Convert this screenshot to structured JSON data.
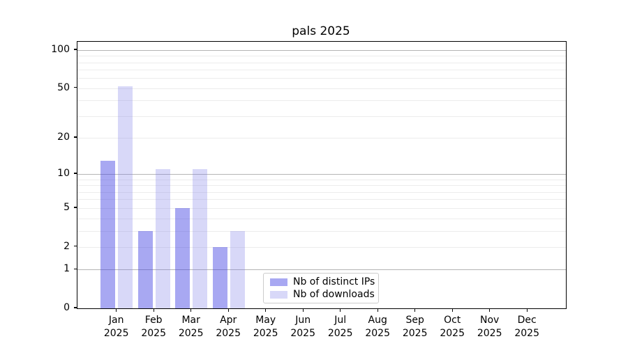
{
  "title": "pals 2025",
  "chart_data": {
    "type": "bar",
    "title": "pals 2025",
    "categories": [
      "Jan",
      "Feb",
      "Mar",
      "Apr",
      "May",
      "Jun",
      "Jul",
      "Aug",
      "Sep",
      "Oct",
      "Nov",
      "Dec"
    ],
    "x_year_label": "2025",
    "series": [
      {
        "name": "Nb of distinct IPs",
        "color": "rgba(62,62,226,0.45)",
        "solid_color": "#a8a8f2",
        "values": [
          13,
          3,
          5,
          2,
          0,
          0,
          0,
          0,
          0,
          0,
          0,
          0
        ]
      },
      {
        "name": "Nb of downloads",
        "color": "rgba(125,125,232,0.30)",
        "solid_color": "#d9d9f8",
        "values": [
          52,
          11,
          11,
          3,
          0,
          0,
          0,
          0,
          0,
          0,
          0,
          0
        ]
      }
    ],
    "y_ticks": [
      100,
      50,
      20,
      10,
      5,
      2,
      1,
      0
    ],
    "y_scale": "log1p",
    "y_axis_top_value": 116,
    "ylim": [
      0,
      116
    ],
    "major_gridlines": [
      1,
      10,
      100
    ],
    "minor_gridlines": [
      2,
      3,
      4,
      5,
      6,
      7,
      8,
      9,
      20,
      30,
      40,
      50,
      60,
      70,
      80,
      90
    ],
    "grid": true,
    "legend_position": "inside bottom-center",
    "legend_items": [
      "Nb of distinct IPs",
      "Nb of downloads"
    ],
    "colors": {
      "major_grid": "#b4b4b4",
      "minor_grid": "#ececec",
      "spine": "#000000",
      "text": "#000000"
    }
  }
}
